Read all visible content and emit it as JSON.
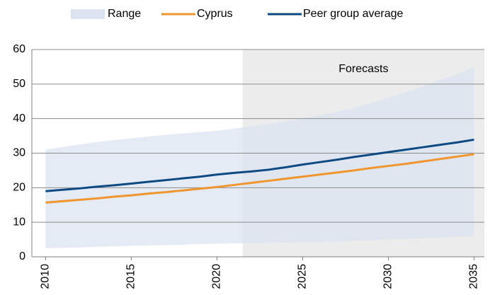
{
  "chart_data": {
    "type": "line",
    "x": [
      2010,
      2011,
      2012,
      2013,
      2014,
      2015,
      2016,
      2017,
      2018,
      2019,
      2020,
      2021,
      2022,
      2023,
      2024,
      2025,
      2026,
      2027,
      2028,
      2029,
      2030,
      2031,
      2032,
      2033,
      2034,
      2035
    ],
    "range": {
      "name": "Range",
      "color": "#dce4f0",
      "upper": [
        31.0,
        31.8,
        32.5,
        33.2,
        33.8,
        34.3,
        34.8,
        35.3,
        35.7,
        36.1,
        36.5,
        37.1,
        37.8,
        38.5,
        39.2,
        40.0,
        41.0,
        42.0,
        43.1,
        44.5,
        46.0,
        47.6,
        49.3,
        51.1,
        52.9,
        54.8
      ],
      "lower": [
        2.5,
        2.6,
        2.7,
        2.9,
        3.0,
        3.2,
        3.3,
        3.4,
        3.5,
        3.7,
        3.8,
        3.9,
        3.9,
        4.0,
        4.1,
        4.2,
        4.3,
        4.4,
        4.6,
        4.8,
        5.0,
        5.2,
        5.4,
        5.6,
        5.8,
        6.0
      ]
    },
    "series": [
      {
        "name": "Cyprus",
        "color": "#f0962e",
        "values": [
          15.7,
          16.1,
          16.5,
          16.9,
          17.4,
          17.8,
          18.3,
          18.7,
          19.2,
          19.7,
          20.2,
          20.8,
          21.4,
          22.0,
          22.6,
          23.2,
          23.8,
          24.4,
          25.0,
          25.7,
          26.3,
          26.9,
          27.6,
          28.3,
          29.0,
          29.7
        ]
      },
      {
        "name": "Peer group average",
        "color": "#0d4a84",
        "values": [
          19.0,
          19.4,
          19.8,
          20.3,
          20.7,
          21.2,
          21.7,
          22.2,
          22.7,
          23.2,
          23.8,
          24.3,
          24.7,
          25.2,
          25.9,
          26.7,
          27.4,
          28.1,
          28.9,
          29.6,
          30.3,
          31.0,
          31.7,
          32.4,
          33.1,
          33.9
        ]
      }
    ],
    "forecast": {
      "label": "Forecasts",
      "start": 2021.5,
      "color": "#ececec"
    },
    "xlim": [
      2009.2,
      2035.6
    ],
    "xticks": [
      2010,
      2015,
      2020,
      2025,
      2030,
      2035
    ],
    "ylim": [
      0,
      60
    ],
    "yticks": [
      0,
      10,
      20,
      30,
      40,
      50,
      60
    ],
    "grid": true
  }
}
